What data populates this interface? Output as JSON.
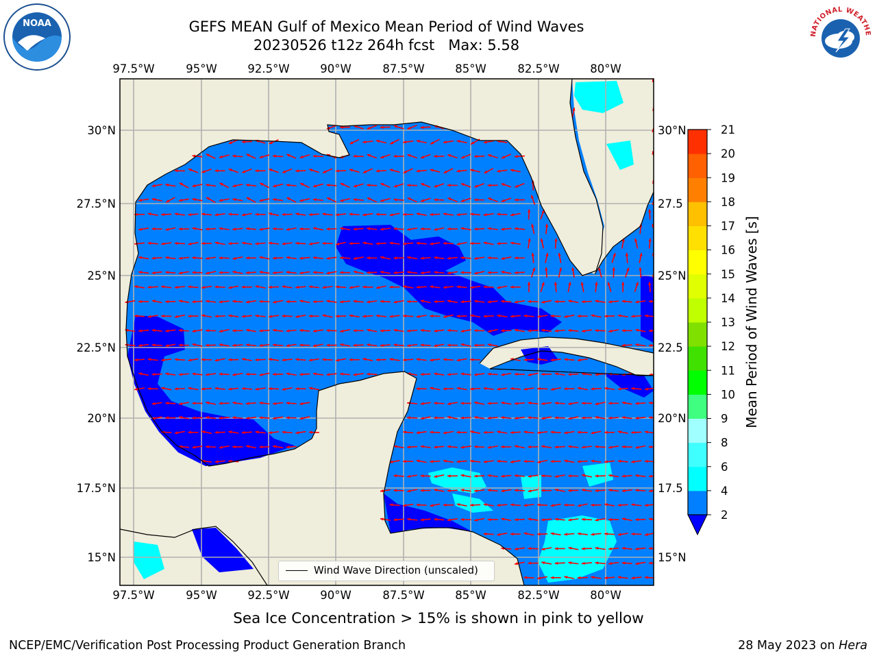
{
  "title": {
    "line1": "GEFS MEAN Gulf of Mexico Mean Period of Wind Waves",
    "line2": "20230526 t12z 264h fcst   Max: 5.58"
  },
  "map": {
    "region": "Gulf of Mexico",
    "lon_ticks": [
      "97.5°W",
      "95°W",
      "92.5°W",
      "90°W",
      "87.5°W",
      "85°W",
      "82.5°W",
      "80°W"
    ],
    "lat_ticks": [
      "30°N",
      "27.5°N",
      "25°N",
      "22.5°N",
      "20°N",
      "17.5°N",
      "15°N"
    ],
    "lat_ticks_right": [
      "30°N",
      "27.5",
      "25°N",
      "22.5",
      "20°N",
      "17.5",
      "15°N"
    ],
    "land_color": "#efeddb",
    "grid": true,
    "colors": {
      "wave_0_2": "#0000ff",
      "wave_2_4": "#0080ff",
      "wave_4_6": "#00ffff",
      "wave_6_8": "#40ffff",
      "arrow": "#ff0000"
    }
  },
  "legend": {
    "label": "Wind Wave Direction (unscaled)"
  },
  "colorbar": {
    "title": "Mean Period of Wind Waves [s]",
    "ticks": [
      "2",
      "4",
      "6",
      "8",
      "9",
      "10",
      "11",
      "12",
      "13",
      "14",
      "15",
      "16",
      "17",
      "18",
      "19",
      "20",
      "21"
    ],
    "colors": [
      "#0080ff",
      "#00ffff",
      "#40ffff",
      "#a0ffff",
      "#40ff80",
      "#00ff00",
      "#40e000",
      "#80e000",
      "#c0ff00",
      "#e0ff00",
      "#ffff00",
      "#ffe000",
      "#ffc000",
      "#ff8000",
      "#ff6000",
      "#ff3000",
      "#ff0000"
    ],
    "extend_color": "#0000ff"
  },
  "note": "Sea Ice Concentration > 15% is shown in pink to yellow",
  "credit": {
    "left": "NCEP/EMC/Verification Post Processing Product Generation Branch",
    "right_prefix": "28 May 2023 on ",
    "right_machine": "Hera"
  },
  "logos": {
    "left": "NOAA",
    "right": "NATIONAL WEATHER SERVICE"
  }
}
